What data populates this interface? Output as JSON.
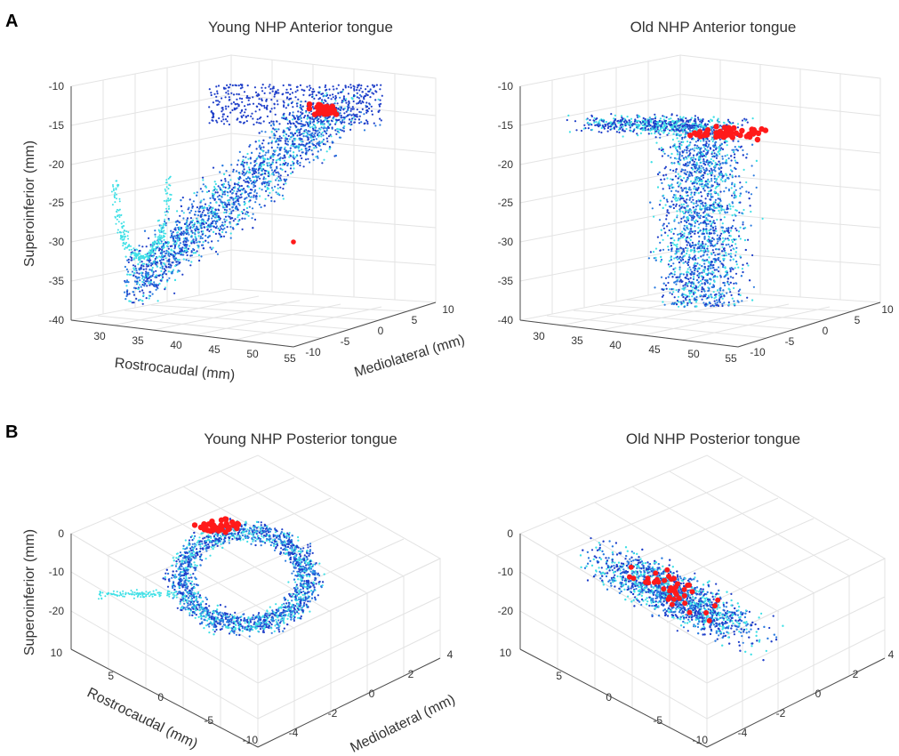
{
  "figure": {
    "panel_letters": [
      "A",
      "B"
    ]
  },
  "colors": {
    "young_old_points_dark": "#1f3fc9",
    "points_mid": "#2a7be0",
    "points_light": "#3fe0e6",
    "highlight": "#ff1a1a",
    "grid": "#e3e3e3"
  },
  "chart_data": [
    {
      "type": "scatter",
      "title": "Young NHP Anterior tongue",
      "xlabel": "Rostrocaudal (mm)",
      "ylabel": "Mediolateral (mm)",
      "zlabel": "Superoinferior (mm)",
      "xlim": [
        28,
        56
      ],
      "ylim": [
        -12,
        11
      ],
      "zlim": [
        -40,
        -10
      ],
      "xticks": [
        "30",
        "35",
        "40",
        "45",
        "50",
        "55"
      ],
      "yticks": [
        "-10",
        "-5",
        "0",
        "5",
        "10"
      ],
      "zticks": [
        "-10",
        "-15",
        "-20",
        "-25",
        "-30",
        "-35",
        "-40"
      ],
      "grid": true,
      "series": [
        {
          "color": "dark_blue",
          "marker": "small dots",
          "distribution": "dense loop from rostrocaudal 33-55, superoinferior -38 to -10"
        },
        {
          "color": "cyan",
          "marker": "small dots",
          "distribution": "outer trajectories"
        },
        {
          "color": "red",
          "marker": "large dots",
          "cluster_center": {
            "x": 50,
            "y": 2,
            "z": -12
          }
        }
      ]
    },
    {
      "type": "scatter",
      "title": "Old NHP Anterior tongue",
      "xlabel": "",
      "ylabel": "",
      "zlabel": "",
      "xlim": [
        28,
        56
      ],
      "ylim": [
        -12,
        11
      ],
      "zlim": [
        -40,
        -10
      ],
      "xticks": [
        "30",
        "35",
        "40",
        "45",
        "50",
        "55"
      ],
      "yticks": [
        "-10",
        "-5",
        "0",
        "5",
        "10"
      ],
      "zticks": [
        "-10",
        "-15",
        "-20",
        "-25",
        "-30",
        "-35",
        "-40"
      ],
      "grid": true,
      "series": [
        {
          "color": "dark_blue",
          "marker": "small dots",
          "distribution": "vertical column, superoinferior -38 to -12"
        },
        {
          "color": "cyan",
          "marker": "small dots",
          "distribution": "scattered trajectories"
        },
        {
          "color": "red",
          "marker": "large dots",
          "cluster_center": {
            "x": 48,
            "y": 0,
            "z": -15
          }
        }
      ]
    },
    {
      "type": "scatter",
      "title": "Young NHP Posterior tongue",
      "xlabel": "Rostrocaudal (mm)",
      "ylabel": "Mediolateral (mm)",
      "zlabel": "Superoinferior (mm)",
      "xlim": [
        10,
        -10
      ],
      "ylim": [
        -5,
        4
      ],
      "zlim": [
        -25,
        2
      ],
      "xticks": [
        "10",
        "5",
        "0",
        "-5",
        "-10"
      ],
      "yticks": [
        "-4",
        "-2",
        "0",
        "2",
        "4"
      ],
      "zticks": [
        "0",
        "-10",
        "-20"
      ],
      "grid": true,
      "series": [
        {
          "color": "dark_blue",
          "marker": "small dots",
          "distribution": "ring-shaped loop"
        },
        {
          "color": "cyan",
          "marker": "small dots",
          "distribution": "outer trajectories"
        },
        {
          "color": "red",
          "marker": "large dots",
          "cluster_center": {
            "x": 3,
            "y": 1,
            "z": 0
          }
        }
      ]
    },
    {
      "type": "scatter",
      "title": "Old NHP Posterior tongue",
      "xlabel": "",
      "ylabel": "",
      "zlabel": "",
      "xlim": [
        10,
        -10
      ],
      "ylim": [
        -5,
        4
      ],
      "zlim": [
        -25,
        2
      ],
      "xticks": [
        "10",
        "5",
        "0",
        "-5",
        "-10"
      ],
      "yticks": [
        "-4",
        "-2",
        "0",
        "2",
        "4"
      ],
      "zticks": [
        "0",
        "-10",
        "-20"
      ],
      "grid": true,
      "series": [
        {
          "color": "dark_blue",
          "marker": "small dots",
          "distribution": "elongated diagonal cloud"
        },
        {
          "color": "cyan",
          "marker": "small dots",
          "distribution": "scattered trajectories"
        },
        {
          "color": "red",
          "marker": "large dots",
          "distribution": "spread through cloud centre"
        }
      ]
    }
  ]
}
